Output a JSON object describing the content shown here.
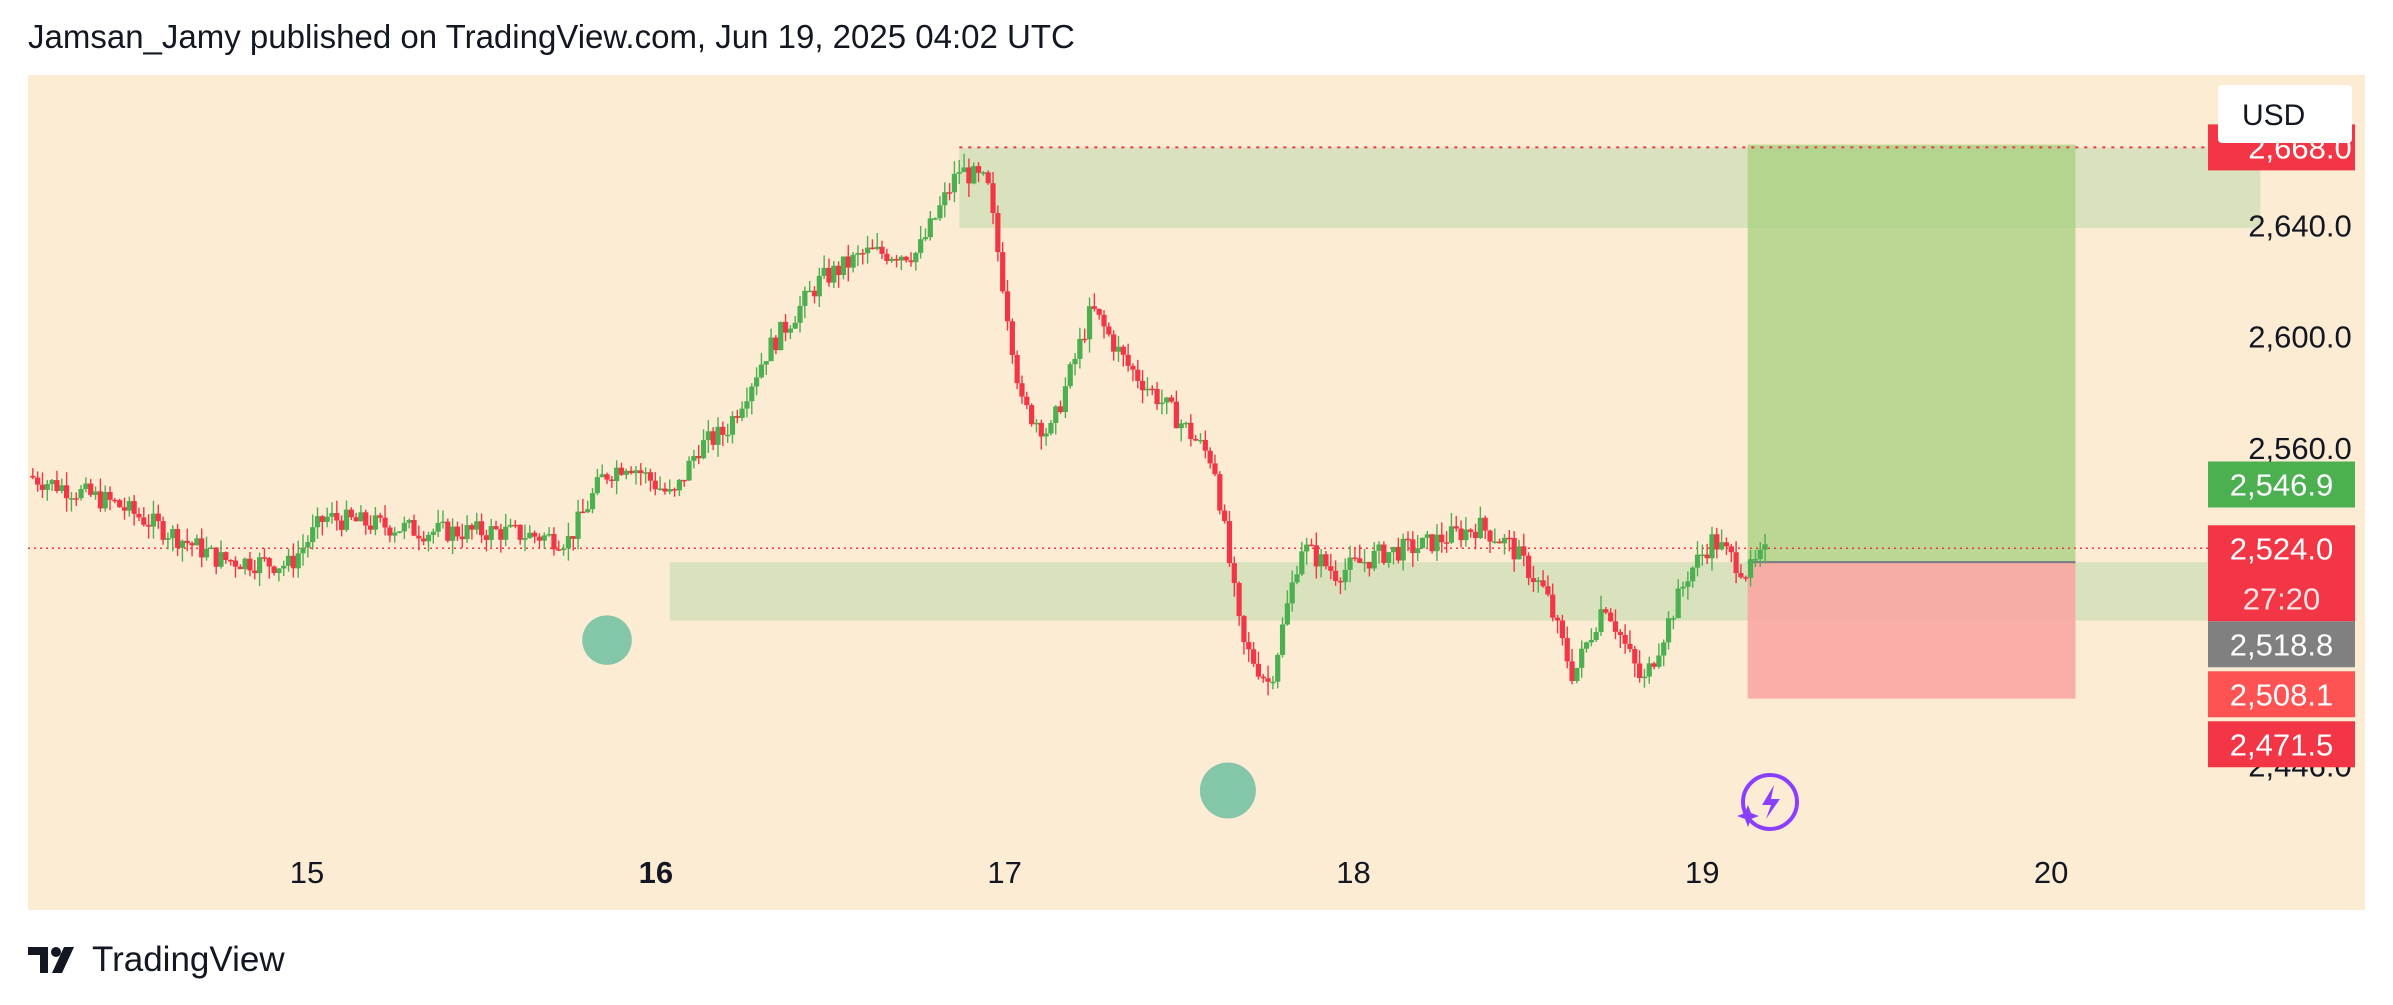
{
  "header": {
    "text": "Jamsan_Jamy published on TradingView.com, Jun 19, 2025 04:02 UTC"
  },
  "currency_button": {
    "label": "USD"
  },
  "footer": {
    "brand": "TradingView"
  },
  "colors": {
    "background": "#fdecd4",
    "up": "#26a69a",
    "up_candle": "#4caf50",
    "down": "#f23645",
    "zone": "#d8e2bc",
    "target": "#a5d07f",
    "stop": "#f9a3a0",
    "gray_label": "#808080",
    "circle": "#6fc0a0",
    "purple": "#8a3ffc"
  },
  "chart_data": {
    "type": "candlestick",
    "x_ticks": [
      "15",
      "16",
      "17",
      "18",
      "19",
      "20"
    ],
    "x_tick_bold": [
      false,
      true,
      false,
      false,
      false,
      false
    ],
    "x_range": [
      14.2,
      20.9
    ],
    "y_ticks": [
      2640.0,
      2600.0,
      2560.0
    ],
    "y_range": [
      2421,
      2694
    ],
    "price_labels": [
      {
        "value": 2668.0,
        "text": "2,668.0",
        "color": "#f23645",
        "partial": true
      },
      {
        "value": 2546.9,
        "text": "2,546.9",
        "color": "#4caf50"
      },
      {
        "value": 2524.0,
        "text": "2,524.0",
        "sub": "27:20",
        "color": "#f23645"
      },
      {
        "value": 2518.8,
        "text": "2,518.8",
        "color": "#808080"
      },
      {
        "value": 2508.1,
        "text": "2,508.1",
        "color": "#ff5252"
      },
      {
        "value": 2471.5,
        "text": "2,471.5",
        "color": "#f23645"
      },
      {
        "value": 2446.0,
        "text": "2,446.0",
        "color": "#131722",
        "partial": true
      }
    ],
    "last_price": 2524.0,
    "resistance_line": 2668.0,
    "zones": [
      {
        "from_x": 16.87,
        "to_x": 20.6,
        "y_top": 2668,
        "y_bottom": 2639
      },
      {
        "from_x": 16.04,
        "to_x": 20.6,
        "y_top": 2519,
        "y_bottom": 2498
      }
    ],
    "position": {
      "from_x": 19.13,
      "to_x": 20.07,
      "entry": 2519,
      "target": 2669,
      "stop": 2470
    },
    "markers": [
      {
        "x": 15.86,
        "y": 2491,
        "r": 0.6
      },
      {
        "x": 17.64,
        "y": 2437,
        "r": 1.0
      }
    ],
    "anchors": [
      [
        14.2,
        2550
      ],
      [
        14.45,
        2540
      ],
      [
        14.75,
        2520
      ],
      [
        14.95,
        2518
      ],
      [
        15.05,
        2535
      ],
      [
        15.35,
        2530
      ],
      [
        15.55,
        2530
      ],
      [
        15.75,
        2527
      ],
      [
        15.85,
        2550
      ],
      [
        15.92,
        2555
      ],
      [
        16.05,
        2542
      ],
      [
        16.12,
        2560
      ],
      [
        16.2,
        2566
      ],
      [
        16.32,
        2595
      ],
      [
        16.47,
        2620
      ],
      [
        16.6,
        2630
      ],
      [
        16.75,
        2630
      ],
      [
        16.87,
        2660
      ],
      [
        16.95,
        2655
      ],
      [
        17.05,
        2575
      ],
      [
        17.13,
        2565
      ],
      [
        17.25,
        2610
      ],
      [
        17.35,
        2590
      ],
      [
        17.5,
        2570
      ],
      [
        17.6,
        2555
      ],
      [
        17.68,
        2490
      ],
      [
        17.76,
        2475
      ],
      [
        17.85,
        2525
      ],
      [
        17.95,
        2515
      ],
      [
        18.08,
        2522
      ],
      [
        18.2,
        2525
      ],
      [
        18.36,
        2532
      ],
      [
        18.45,
        2525
      ],
      [
        18.55,
        2508
      ],
      [
        18.63,
        2478
      ],
      [
        18.72,
        2505
      ],
      [
        18.83,
        2475
      ],
      [
        18.96,
        2515
      ],
      [
        19.03,
        2527
      ],
      [
        19.13,
        2515
      ],
      [
        19.18,
        2522
      ]
    ]
  }
}
